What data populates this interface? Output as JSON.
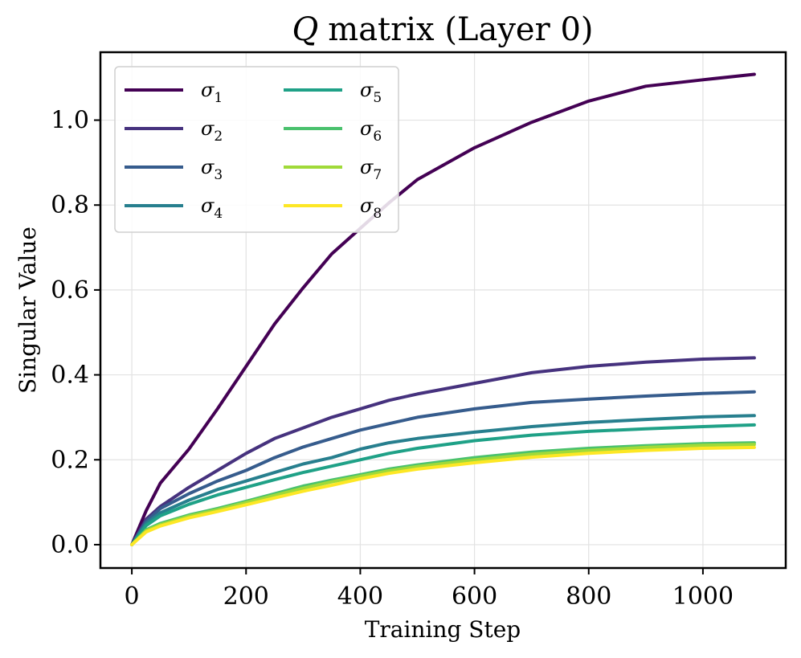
{
  "chart_data": {
    "type": "line",
    "title_symbol": "Q",
    "title": "matrix (Layer 0)",
    "xlabel": "Training Step",
    "ylabel": "Singular Value",
    "xlim": [
      -55,
      1145
    ],
    "ylim": [
      -0.055,
      1.16
    ],
    "x_ticks": [
      0,
      200,
      400,
      600,
      800,
      1000
    ],
    "x_tick_labels": [
      "0",
      "200",
      "400",
      "600",
      "800",
      "1000"
    ],
    "y_ticks": [
      0.0,
      0.2,
      0.4,
      0.6,
      0.8,
      1.0
    ],
    "y_tick_labels": [
      "0.0",
      "0.2",
      "0.4",
      "0.6",
      "0.8",
      "1.0"
    ],
    "grid": true,
    "legend_position": "upper-left",
    "legend_columns": 2,
    "x": [
      0,
      25,
      50,
      100,
      150,
      200,
      250,
      300,
      350,
      400,
      450,
      500,
      600,
      700,
      800,
      900,
      1000,
      1090
    ],
    "series": [
      {
        "name": "σ",
        "subscript": "1",
        "color": "#440154",
        "values": [
          0.0,
          0.08,
          0.145,
          0.225,
          0.32,
          0.42,
          0.52,
          0.605,
          0.685,
          0.745,
          0.805,
          0.86,
          0.935,
          0.995,
          1.045,
          1.08,
          1.095,
          1.108
        ]
      },
      {
        "name": "σ",
        "subscript": "2",
        "color": "#46327e",
        "values": [
          0.0,
          0.06,
          0.09,
          0.135,
          0.175,
          0.215,
          0.25,
          0.275,
          0.3,
          0.32,
          0.34,
          0.355,
          0.38,
          0.405,
          0.42,
          0.43,
          0.437,
          0.44
        ]
      },
      {
        "name": "σ",
        "subscript": "3",
        "color": "#365c8d",
        "values": [
          0.0,
          0.055,
          0.085,
          0.12,
          0.15,
          0.175,
          0.205,
          0.23,
          0.25,
          0.27,
          0.285,
          0.3,
          0.32,
          0.335,
          0.343,
          0.35,
          0.356,
          0.36
        ]
      },
      {
        "name": "σ",
        "subscript": "4",
        "color": "#277f8e",
        "values": [
          0.0,
          0.05,
          0.075,
          0.105,
          0.13,
          0.15,
          0.17,
          0.19,
          0.205,
          0.225,
          0.24,
          0.25,
          0.265,
          0.278,
          0.288,
          0.295,
          0.301,
          0.304
        ]
      },
      {
        "name": "σ",
        "subscript": "5",
        "color": "#1fa187",
        "values": [
          0.0,
          0.045,
          0.068,
          0.095,
          0.117,
          0.135,
          0.153,
          0.17,
          0.185,
          0.2,
          0.215,
          0.227,
          0.245,
          0.258,
          0.267,
          0.273,
          0.278,
          0.282
        ]
      },
      {
        "name": "σ",
        "subscript": "6",
        "color": "#4ac16d",
        "values": [
          0.0,
          0.035,
          0.05,
          0.07,
          0.085,
          0.102,
          0.12,
          0.138,
          0.152,
          0.165,
          0.178,
          0.188,
          0.205,
          0.218,
          0.227,
          0.233,
          0.238,
          0.24
        ]
      },
      {
        "name": "σ",
        "subscript": "7",
        "color": "#a0da39",
        "values": [
          0.0,
          0.033,
          0.047,
          0.067,
          0.082,
          0.099,
          0.116,
          0.133,
          0.148,
          0.161,
          0.174,
          0.184,
          0.2,
          0.213,
          0.222,
          0.229,
          0.234,
          0.236
        ]
      },
      {
        "name": "σ",
        "subscript": "8",
        "color": "#fde725",
        "values": [
          0.0,
          0.03,
          0.044,
          0.063,
          0.078,
          0.094,
          0.11,
          0.126,
          0.14,
          0.155,
          0.168,
          0.178,
          0.193,
          0.206,
          0.215,
          0.222,
          0.227,
          0.229
        ]
      }
    ]
  }
}
